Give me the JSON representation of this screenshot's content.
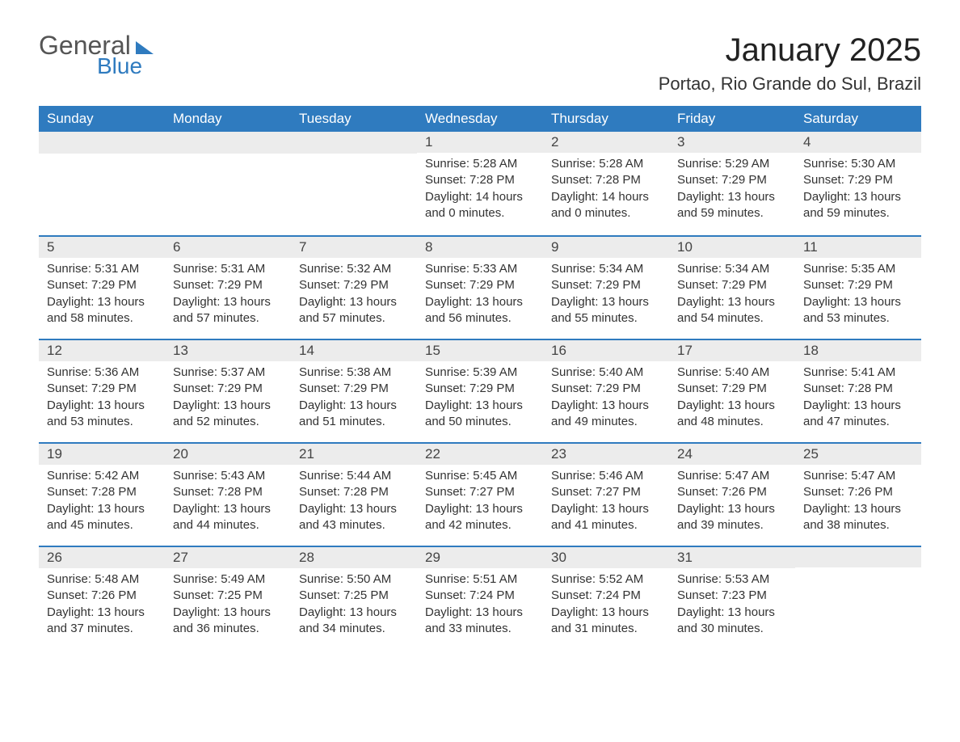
{
  "logo": {
    "word1": "General",
    "word2": "Blue"
  },
  "title": "January 2025",
  "location": "Portao, Rio Grande do Sul, Brazil",
  "colors": {
    "header_bg": "#2f7bbf",
    "header_text": "#ffffff",
    "daybar_bg": "#ececec",
    "daybar_border": "#2f7bbf",
    "body_bg": "#ffffff",
    "text": "#333333",
    "logo_gray": "#555555",
    "logo_blue": "#2f7bbf"
  },
  "typography": {
    "title_fontsize": 40,
    "location_fontsize": 22,
    "dayheader_fontsize": 17,
    "daynum_fontsize": 17,
    "body_fontsize": 15
  },
  "layout": {
    "columns": 7,
    "rows": 5,
    "start_day_index": 3
  },
  "day_headers": [
    "Sunday",
    "Monday",
    "Tuesday",
    "Wednesday",
    "Thursday",
    "Friday",
    "Saturday"
  ],
  "labels": {
    "sunrise": "Sunrise:",
    "sunset": "Sunset:",
    "daylight": "Daylight:"
  },
  "days": [
    {
      "n": 1,
      "sunrise": "5:28 AM",
      "sunset": "7:28 PM",
      "daylight": "14 hours and 0 minutes."
    },
    {
      "n": 2,
      "sunrise": "5:28 AM",
      "sunset": "7:28 PM",
      "daylight": "14 hours and 0 minutes."
    },
    {
      "n": 3,
      "sunrise": "5:29 AM",
      "sunset": "7:29 PM",
      "daylight": "13 hours and 59 minutes."
    },
    {
      "n": 4,
      "sunrise": "5:30 AM",
      "sunset": "7:29 PM",
      "daylight": "13 hours and 59 minutes."
    },
    {
      "n": 5,
      "sunrise": "5:31 AM",
      "sunset": "7:29 PM",
      "daylight": "13 hours and 58 minutes."
    },
    {
      "n": 6,
      "sunrise": "5:31 AM",
      "sunset": "7:29 PM",
      "daylight": "13 hours and 57 minutes."
    },
    {
      "n": 7,
      "sunrise": "5:32 AM",
      "sunset": "7:29 PM",
      "daylight": "13 hours and 57 minutes."
    },
    {
      "n": 8,
      "sunrise": "5:33 AM",
      "sunset": "7:29 PM",
      "daylight": "13 hours and 56 minutes."
    },
    {
      "n": 9,
      "sunrise": "5:34 AM",
      "sunset": "7:29 PM",
      "daylight": "13 hours and 55 minutes."
    },
    {
      "n": 10,
      "sunrise": "5:34 AM",
      "sunset": "7:29 PM",
      "daylight": "13 hours and 54 minutes."
    },
    {
      "n": 11,
      "sunrise": "5:35 AM",
      "sunset": "7:29 PM",
      "daylight": "13 hours and 53 minutes."
    },
    {
      "n": 12,
      "sunrise": "5:36 AM",
      "sunset": "7:29 PM",
      "daylight": "13 hours and 53 minutes."
    },
    {
      "n": 13,
      "sunrise": "5:37 AM",
      "sunset": "7:29 PM",
      "daylight": "13 hours and 52 minutes."
    },
    {
      "n": 14,
      "sunrise": "5:38 AM",
      "sunset": "7:29 PM",
      "daylight": "13 hours and 51 minutes."
    },
    {
      "n": 15,
      "sunrise": "5:39 AM",
      "sunset": "7:29 PM",
      "daylight": "13 hours and 50 minutes."
    },
    {
      "n": 16,
      "sunrise": "5:40 AM",
      "sunset": "7:29 PM",
      "daylight": "13 hours and 49 minutes."
    },
    {
      "n": 17,
      "sunrise": "5:40 AM",
      "sunset": "7:29 PM",
      "daylight": "13 hours and 48 minutes."
    },
    {
      "n": 18,
      "sunrise": "5:41 AM",
      "sunset": "7:28 PM",
      "daylight": "13 hours and 47 minutes."
    },
    {
      "n": 19,
      "sunrise": "5:42 AM",
      "sunset": "7:28 PM",
      "daylight": "13 hours and 45 minutes."
    },
    {
      "n": 20,
      "sunrise": "5:43 AM",
      "sunset": "7:28 PM",
      "daylight": "13 hours and 44 minutes."
    },
    {
      "n": 21,
      "sunrise": "5:44 AM",
      "sunset": "7:28 PM",
      "daylight": "13 hours and 43 minutes."
    },
    {
      "n": 22,
      "sunrise": "5:45 AM",
      "sunset": "7:27 PM",
      "daylight": "13 hours and 42 minutes."
    },
    {
      "n": 23,
      "sunrise": "5:46 AM",
      "sunset": "7:27 PM",
      "daylight": "13 hours and 41 minutes."
    },
    {
      "n": 24,
      "sunrise": "5:47 AM",
      "sunset": "7:26 PM",
      "daylight": "13 hours and 39 minutes."
    },
    {
      "n": 25,
      "sunrise": "5:47 AM",
      "sunset": "7:26 PM",
      "daylight": "13 hours and 38 minutes."
    },
    {
      "n": 26,
      "sunrise": "5:48 AM",
      "sunset": "7:26 PM",
      "daylight": "13 hours and 37 minutes."
    },
    {
      "n": 27,
      "sunrise": "5:49 AM",
      "sunset": "7:25 PM",
      "daylight": "13 hours and 36 minutes."
    },
    {
      "n": 28,
      "sunrise": "5:50 AM",
      "sunset": "7:25 PM",
      "daylight": "13 hours and 34 minutes."
    },
    {
      "n": 29,
      "sunrise": "5:51 AM",
      "sunset": "7:24 PM",
      "daylight": "13 hours and 33 minutes."
    },
    {
      "n": 30,
      "sunrise": "5:52 AM",
      "sunset": "7:24 PM",
      "daylight": "13 hours and 31 minutes."
    },
    {
      "n": 31,
      "sunrise": "5:53 AM",
      "sunset": "7:23 PM",
      "daylight": "13 hours and 30 minutes."
    }
  ]
}
